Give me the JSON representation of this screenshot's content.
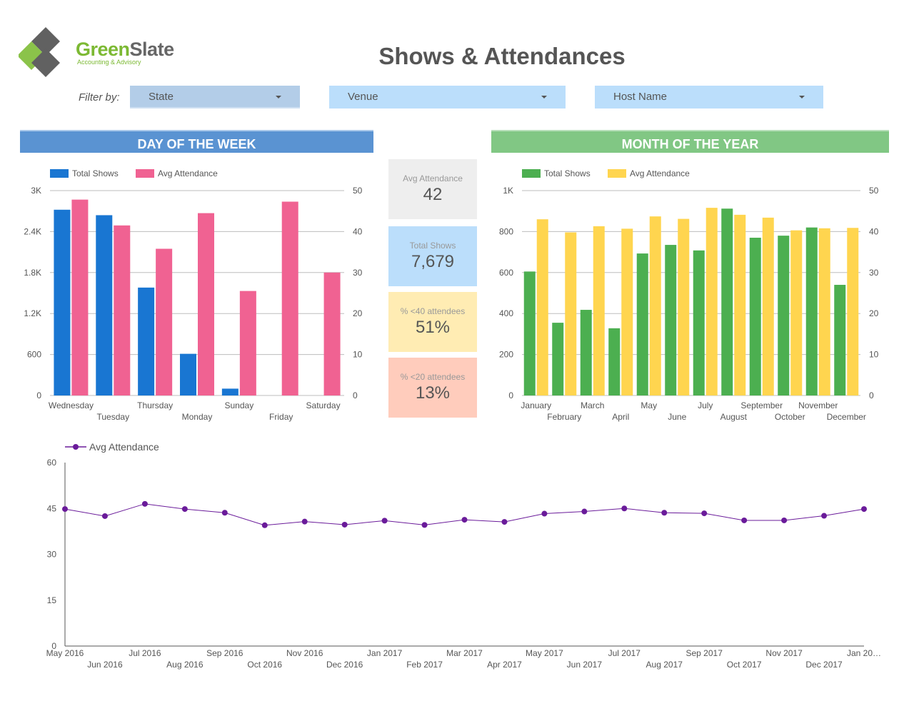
{
  "header": {
    "logo_name_part1": "Green",
    "logo_name_part2": "Slate",
    "logo_tagline": "Accounting & Advisory",
    "title": "Shows & Attendances"
  },
  "filters": {
    "label": "Filter by:",
    "state": "State",
    "venue": "Venue",
    "host": "Host Name"
  },
  "sections": {
    "day": "DAY OF THE WEEK",
    "month": "MONTH OF THE YEAR"
  },
  "scorecards": [
    {
      "label": "Avg Attendance",
      "value": "42",
      "bg": "#eeeeee"
    },
    {
      "label": "Total Shows",
      "value": "7,679",
      "bg": "#bbdefb"
    },
    {
      "label": "% <40 attendees",
      "value": "51%",
      "bg": "#ffecb3"
    },
    {
      "label": "% <20 attendees",
      "value": "13%",
      "bg": "#ffccbc"
    }
  ],
  "colors": {
    "blue": "#1976d2",
    "pink": "#f06292",
    "green": "#4caf50",
    "yellow": "#ffd54f",
    "purple": "#6a1b9a",
    "grid": "#bdbdbd"
  },
  "chart_data": [
    {
      "type": "bar",
      "categories": [
        "Wednesday",
        "Tuesday",
        "Thursday",
        "Monday",
        "Sunday",
        "Friday",
        "Saturday"
      ],
      "series": [
        {
          "name": "Total Shows",
          "axis": "left",
          "values": [
            2720,
            2640,
            1580,
            610,
            100,
            0,
            0
          ]
        },
        {
          "name": "Avg Attendance",
          "axis": "right",
          "values": [
            47.8,
            41.5,
            35.8,
            44.5,
            25.5,
            47.3,
            30.0
          ]
        }
      ],
      "yleft": {
        "min": 0,
        "max": 3000,
        "ticks": [
          "0",
          "600",
          "1.2K",
          "1.8K",
          "2.4K",
          "3K"
        ]
      },
      "yright": {
        "min": 0,
        "max": 50,
        "ticks": [
          "0",
          "10",
          "20",
          "30",
          "40",
          "50"
        ]
      },
      "legend": "top-left",
      "grid": true
    },
    {
      "type": "bar",
      "categories": [
        "January",
        "February",
        "March",
        "April",
        "May",
        "June",
        "July",
        "August",
        "September",
        "October",
        "November",
        "December"
      ],
      "series": [
        {
          "name": "Total Shows",
          "axis": "left",
          "values": [
            605,
            355,
            418,
            328,
            693,
            735,
            708,
            912,
            770,
            780,
            820,
            540
          ]
        },
        {
          "name": "Avg Attendance",
          "axis": "right",
          "values": [
            43.0,
            39.8,
            41.3,
            40.7,
            43.7,
            43.1,
            45.8,
            44.1,
            43.4,
            40.3,
            40.8,
            40.9
          ]
        }
      ],
      "yleft": {
        "min": 0,
        "max": 1000,
        "ticks": [
          "0",
          "200",
          "400",
          "600",
          "800",
          "1K"
        ]
      },
      "yright": {
        "min": 0,
        "max": 50,
        "ticks": [
          "0",
          "10",
          "20",
          "30",
          "40",
          "50"
        ]
      },
      "legend": "top-left",
      "grid": true
    },
    {
      "type": "line",
      "x": [
        "May 2016",
        "Jun 2016",
        "Jul 2016",
        "Aug 2016",
        "Sep 2016",
        "Oct 2016",
        "Nov 2016",
        "Dec 2016",
        "Jan 2017",
        "Feb 2017",
        "Mar 2017",
        "Apr 2017",
        "May 2017",
        "Jun 2017",
        "Jul 2017",
        "Aug 2017",
        "Sep 2017",
        "Oct 2017",
        "Nov 2017",
        "Dec 2017",
        "Jan 20…"
      ],
      "series": [
        {
          "name": "Avg Attendance",
          "values": [
            44.8,
            42.5,
            46.5,
            44.8,
            43.6,
            39.5,
            40.7,
            39.7,
            41.0,
            39.6,
            41.3,
            40.6,
            43.3,
            44.0,
            45.0,
            43.6,
            43.4,
            41.1,
            41.1,
            42.6,
            44.8
          ]
        }
      ],
      "ylim": [
        0,
        60
      ],
      "yticks": [
        "0",
        "15",
        "30",
        "45",
        "60"
      ],
      "legend": "top-left",
      "grid": false
    }
  ]
}
